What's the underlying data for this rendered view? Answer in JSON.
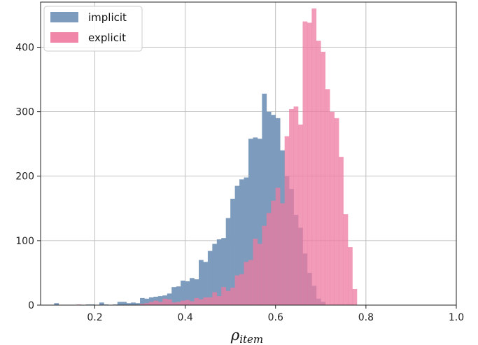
{
  "chart_data": {
    "type": "histogram",
    "title": "",
    "xlabel": "ρ",
    "xlabel_subscript": "item",
    "ylabel": "",
    "xlim": [
      0.08,
      1.0
    ],
    "ylim": [
      0,
      470
    ],
    "x_ticks": [
      0.2,
      0.4,
      0.6,
      0.8,
      1.0
    ],
    "x_tick_labels": [
      "0.2",
      "0.4",
      "0.6",
      "0.8",
      "1.0"
    ],
    "y_ticks": [
      0,
      100,
      200,
      300,
      400
    ],
    "y_tick_labels": [
      "0",
      "100",
      "200",
      "300",
      "400"
    ],
    "grid": true,
    "legend_position": "upper-left",
    "bin_width": 0.01,
    "series": [
      {
        "name": "implicit",
        "color": "#7c9bbd",
        "bin_start": 0.11,
        "counts": [
          3,
          0,
          0,
          0,
          0,
          0,
          0,
          1,
          1,
          0,
          4,
          1,
          0,
          1,
          5,
          5,
          3,
          4,
          3,
          11,
          10,
          12,
          13,
          14,
          15,
          18,
          28,
          29,
          38,
          37,
          42,
          40,
          70,
          67,
          84,
          95,
          102,
          104,
          135,
          165,
          185,
          195,
          198,
          258,
          260,
          258,
          328,
          300,
          295,
          290,
          240,
          200,
          180,
          140,
          120,
          80,
          50,
          30,
          10,
          5
        ]
      },
      {
        "name": "explicit",
        "color": "#ee7aa0",
        "bin_start": 0.16,
        "counts": [
          1,
          0,
          0,
          0,
          0,
          0,
          0,
          0,
          0,
          0,
          0,
          0,
          0,
          0,
          2,
          3,
          5,
          7,
          5,
          10,
          9,
          4,
          5,
          7,
          8,
          6,
          11,
          9,
          12,
          12,
          20,
          14,
          28,
          22,
          27,
          46,
          48,
          67,
          70,
          103,
          95,
          123,
          143,
          162,
          182,
          158,
          262,
          304,
          308,
          280,
          440,
          438,
          460,
          410,
          393,
          335,
          300,
          290,
          230,
          141,
          90,
          25
        ]
      }
    ]
  }
}
